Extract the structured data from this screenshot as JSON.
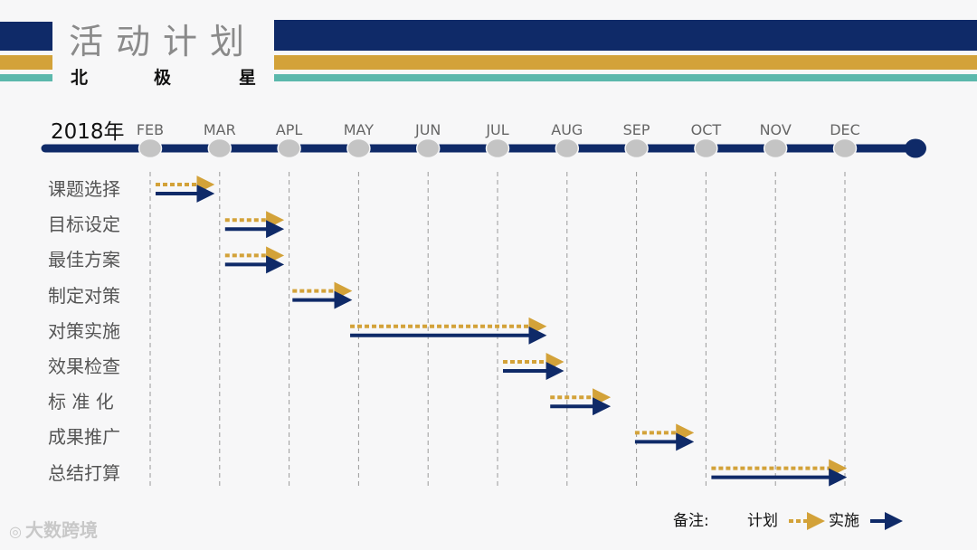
{
  "header": {
    "title": "活动计划",
    "subtitle_chars": [
      "北",
      "极",
      "星"
    ],
    "colors": {
      "navy": "#0f2a68",
      "gold": "#d3a239",
      "teal": "#5bb8ac"
    }
  },
  "timeline": {
    "year_label": "2018年",
    "months": [
      "FEB",
      "MAR",
      "APL",
      "MAY",
      "JUN",
      "JUL",
      "AUG",
      "SEP",
      "OCT",
      "NOV",
      "DEC"
    ]
  },
  "tasks": [
    {
      "label": "课题选择",
      "plan": [
        0.0,
        0.72
      ],
      "actual": [
        0.0,
        0.72
      ]
    },
    {
      "label": "目标设定",
      "plan": [
        1.0,
        1.72
      ],
      "actual": [
        1.0,
        1.72
      ]
    },
    {
      "label": "最佳方案",
      "plan": [
        1.0,
        1.72
      ],
      "actual": [
        1.0,
        1.72
      ]
    },
    {
      "label": "制定对策",
      "plan": [
        1.97,
        2.7
      ],
      "actual": [
        1.97,
        2.7
      ]
    },
    {
      "label": "对策实施",
      "plan": [
        2.8,
        5.5
      ],
      "actual": [
        2.8,
        5.5
      ]
    },
    {
      "label": "效果检查",
      "plan": [
        5.0,
        5.75
      ],
      "actual": [
        5.0,
        5.75
      ]
    },
    {
      "label": "标 准 化",
      "plan": [
        5.68,
        6.42
      ],
      "actual": [
        5.68,
        6.42
      ]
    },
    {
      "label": "成果推广",
      "plan": [
        6.9,
        7.62
      ],
      "actual": [
        6.9,
        7.62
      ]
    },
    {
      "label": "总结打算",
      "plan": [
        8.0,
        9.82
      ],
      "actual": [
        8.0,
        9.82
      ]
    }
  ],
  "legend": {
    "note_label": "备注:",
    "plan_label": "计划",
    "actual_label": "实施"
  },
  "watermark": "大数跨境"
}
